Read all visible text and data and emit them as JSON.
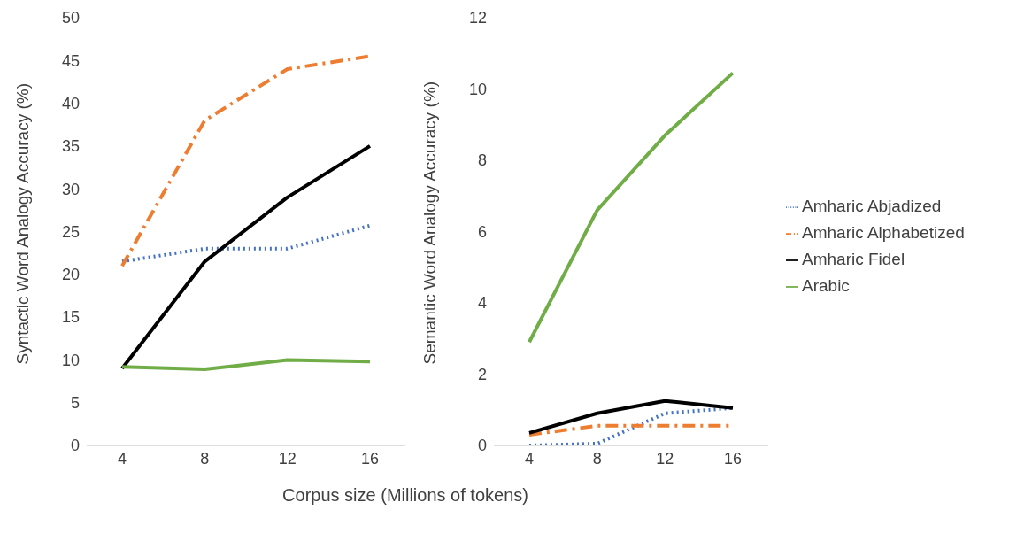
{
  "chart_data": [
    {
      "type": "line",
      "xlabel": "Corpus size  (Millions of tokens)",
      "ylabel": "Syntactic Word Analogy  Accuracy (%)",
      "categories": [
        "4",
        "8",
        "12",
        "16"
      ],
      "ylim": [
        0,
        50
      ],
      "yticks": [
        0,
        5,
        10,
        15,
        20,
        25,
        30,
        35,
        40,
        45,
        50
      ],
      "grid": false,
      "legend": false,
      "marker": "none",
      "series": [
        {
          "color": "#4472c4",
          "line_style": "dotted",
          "values": [
            21.5,
            23,
            23,
            25.7
          ]
        },
        {
          "color": "#ed7d31",
          "line_style": "dashed",
          "values": [
            21,
            38,
            44,
            45.5
          ]
        },
        {
          "color": "#000000",
          "line_style": "solid",
          "values": [
            9,
            21.5,
            29,
            35
          ]
        },
        {
          "color": "#70ad47",
          "line_style": "solid",
          "values": [
            9.2,
            8.9,
            10,
            9.8
          ]
        }
      ]
    },
    {
      "type": "line",
      "ylabel": "Semantic Word Analogy Accuracy (%)",
      "categories": [
        "4",
        "8",
        "12",
        "16"
      ],
      "ylim": [
        0,
        12
      ],
      "yticks": [
        0,
        2,
        4,
        6,
        8,
        10,
        12
      ],
      "grid": false,
      "legend": "right",
      "marker": "none",
      "series": [
        {
          "name": "Amharic Abjadized",
          "color": "#4472c4",
          "line_style": "dotted",
          "values": [
            0,
            0.05,
            0.9,
            1.05
          ]
        },
        {
          "name": "Amharic Alphabetized",
          "color": "#ed7d31",
          "line_style": "dashed",
          "values": [
            0.3,
            0.55,
            0.55,
            0.55
          ]
        },
        {
          "name": "Amharic Fidel",
          "color": "#000000",
          "line_style": "solid",
          "values": [
            0.35,
            0.9,
            1.25,
            1.05
          ]
        },
        {
          "name": "Arabic",
          "color": "#70ad47",
          "line_style": "solid",
          "values": [
            2.9,
            6.6,
            8.7,
            10.45
          ]
        }
      ]
    }
  ]
}
